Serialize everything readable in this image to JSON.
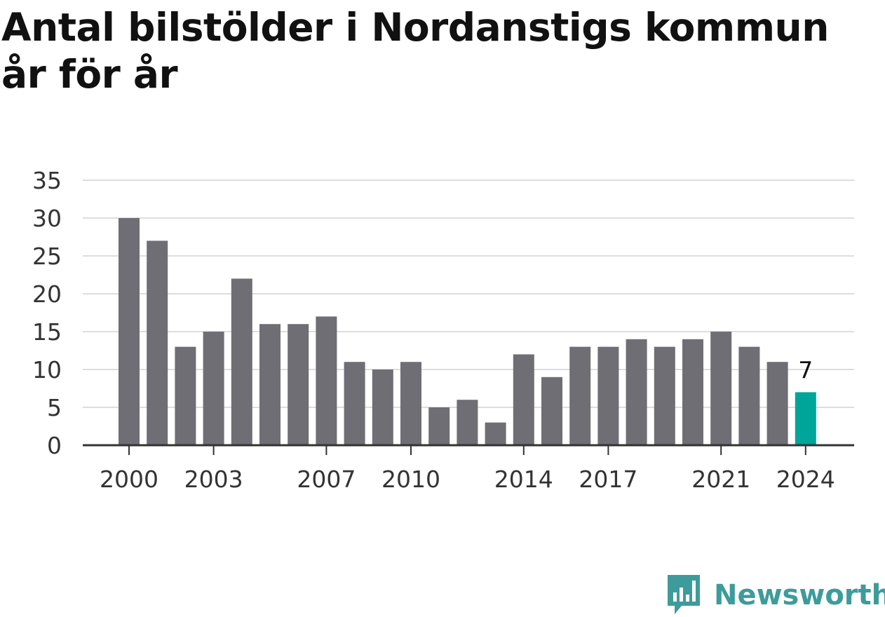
{
  "title": "Antal bilstölder i Nordanstigs kommun år för år",
  "brand": {
    "name": "Newsworthy",
    "logo_icon": "newsworthy-bar-chart-logo-icon",
    "color": "#3e9b9b"
  },
  "colors": {
    "bar": "#6f6e74",
    "highlight": "#00a59a",
    "grid": "#dddddd",
    "axis": "#333333"
  },
  "chart_data": {
    "type": "bar",
    "title": "Antal bilstölder i Nordanstigs kommun år för år",
    "xlabel": "",
    "ylabel": "",
    "categories": [
      2000,
      2001,
      2002,
      2003,
      2004,
      2005,
      2006,
      2007,
      2008,
      2009,
      2010,
      2011,
      2012,
      2013,
      2014,
      2015,
      2016,
      2017,
      2018,
      2019,
      2020,
      2021,
      2022,
      2023,
      2024
    ],
    "values": [
      30,
      27,
      13,
      15,
      22,
      16,
      16,
      17,
      11,
      10,
      11,
      5,
      6,
      3,
      12,
      9,
      13,
      13,
      14,
      13,
      14,
      15,
      13,
      11,
      7
    ],
    "x_tick_labels": [
      "2000",
      "2003",
      "2007",
      "2010",
      "2014",
      "2017",
      "2021",
      "2024"
    ],
    "y_ticks": [
      0,
      5,
      10,
      15,
      20,
      25,
      30,
      35
    ],
    "ylim": [
      0,
      35
    ],
    "grid": true,
    "legend": "none",
    "highlight": {
      "category": 2024,
      "label": "7"
    }
  }
}
